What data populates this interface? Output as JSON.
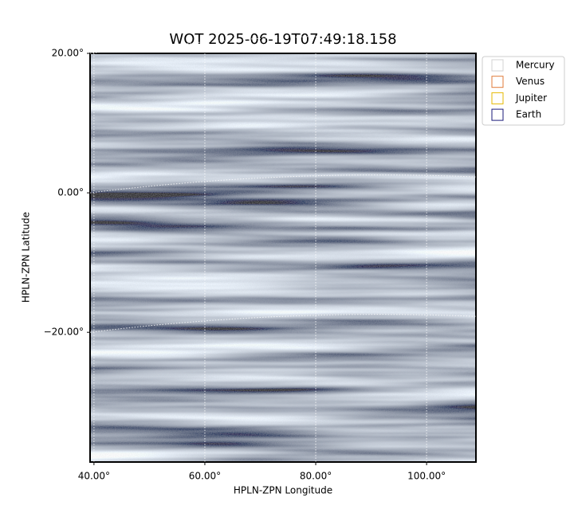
{
  "chart_data": {
    "type": "image",
    "title": "WOT 2025-06-19T07:49:18.158",
    "x_label": "HPLN-ZPN Longitude",
    "y_label": "HPLN-ZPN Latitude",
    "xlim": [
      39.3,
      108.9
    ],
    "ylim": [
      -38.6,
      20
    ],
    "xticks": [
      {
        "value": 40,
        "label": "40.00°"
      },
      {
        "value": 60,
        "label": "60.00°"
      },
      {
        "value": 80,
        "label": "80.00°"
      },
      {
        "value": 100,
        "label": "100.00°"
      }
    ],
    "yticks": [
      {
        "value": 20,
        "label": "20.00°"
      },
      {
        "value": 0,
        "label": "0.00°"
      },
      {
        "value": -20,
        "label": "−20.00°"
      }
    ],
    "grid": true,
    "series": [
      {
        "name": "Mercury",
        "color": "#d3d3d3"
      },
      {
        "name": "Venus",
        "color": "#e07b39"
      },
      {
        "name": "Jupiter",
        "color": "#e6b800"
      },
      {
        "name": "Earth",
        "color": "#1a1a7a"
      }
    ],
    "legend": "upper right outside"
  }
}
